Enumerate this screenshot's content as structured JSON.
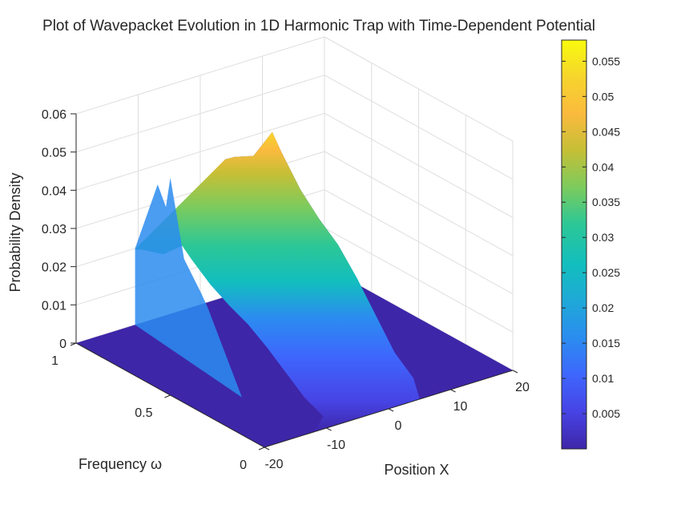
{
  "chart_data": {
    "type": "surface",
    "title": "Plot of Wavepacket Evolution in 1D Harmonic Trap with Time-Dependent Potential",
    "xlabel": "Position X",
    "ylabel": "Frequency ω",
    "zlabel": "Probability Density",
    "xlim": [
      -20,
      20
    ],
    "ylim": [
      0,
      1
    ],
    "zlim": [
      0,
      0.06
    ],
    "x_ticks": [
      "-20",
      "-10",
      "0",
      "10",
      "20"
    ],
    "y_ticks": [
      "0",
      "0.5",
      "1"
    ],
    "z_ticks": [
      "0",
      "0.01",
      "0.02",
      "0.03",
      "0.04",
      "0.05",
      "0.06"
    ],
    "colorbar_ticks": [
      "0.005",
      "0.01",
      "0.015",
      "0.02",
      "0.025",
      "0.03",
      "0.035",
      "0.04",
      "0.045",
      "0.05",
      "0.055"
    ],
    "colorbar_range": [
      0,
      0.058
    ],
    "colormap": [
      "#3e26a8",
      "#4743e4",
      "#3e66fd",
      "#2b8cf0",
      "#1fa8d8",
      "#12bebe",
      "#2cc796",
      "#7ccb5d",
      "#c5bf36",
      "#fbba3e",
      "#f6d52c",
      "#f9fb0e"
    ],
    "grid": true,
    "ridge": {
      "x_start": -12,
      "x_end": 5,
      "peak_density_by_frequency": [
        {
          "frequency": 0.0,
          "density": 0.006
        },
        {
          "frequency": 0.1,
          "density": 0.01
        },
        {
          "frequency": 0.2,
          "density": 0.017
        },
        {
          "frequency": 0.3,
          "density": 0.024
        },
        {
          "frequency": 0.4,
          "density": 0.03
        },
        {
          "frequency": 0.5,
          "density": 0.034
        },
        {
          "frequency": 0.6,
          "density": 0.039
        },
        {
          "frequency": 0.7,
          "density": 0.046
        },
        {
          "frequency": 0.75,
          "density": 0.05
        },
        {
          "frequency": 0.85,
          "density": 0.041
        },
        {
          "frequency": 0.95,
          "density": 0.038
        },
        {
          "frequency": 1.0,
          "density": 0.036
        }
      ]
    }
  }
}
